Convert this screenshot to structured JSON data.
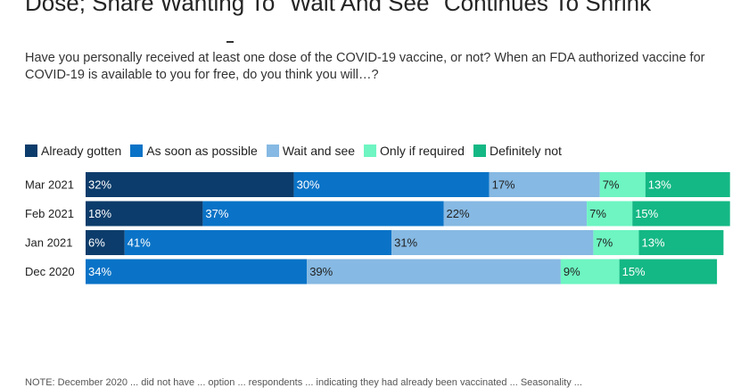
{
  "header": {
    "title": "Dose; Share Wanting To \"Wait And See\" Continues To Shrink",
    "question": "Have you personally received at least one dose of the COVID-19 vaccine, or not? When an FDA authorized vaccine for COVID-19 is available to you for free, do you think you will…?"
  },
  "footer": {
    "note": "NOTE: December 2020 ... did not have ... option ... respondents ... indicating they had already been vaccinated ... Seasonality ..."
  },
  "chart_data": {
    "type": "bar",
    "orientation": "horizontal",
    "stacked": true,
    "categories": [
      "Mar 2021",
      "Feb 2021",
      "Jan 2021",
      "Dec 2020"
    ],
    "series": [
      {
        "name": "Already gotten",
        "color": "#0c3c6b",
        "values": [
          32,
          18,
          6,
          null
        ]
      },
      {
        "name": "As soon as possible",
        "color": "#0a73c7",
        "values": [
          30,
          37,
          41,
          34
        ]
      },
      {
        "name": "Wait and see",
        "color": "#86b9e3",
        "values": [
          17,
          22,
          31,
          39
        ]
      },
      {
        "name": "Only if required",
        "color": "#6ef5c2",
        "values": [
          7,
          7,
          7,
          9
        ]
      },
      {
        "name": "Definitely not",
        "color": "#14b884",
        "values": [
          13,
          15,
          13,
          15
        ]
      }
    ],
    "value_suffix": "%",
    "xlim": [
      0,
      100
    ],
    "legend_position": "top-left",
    "grid": false
  }
}
